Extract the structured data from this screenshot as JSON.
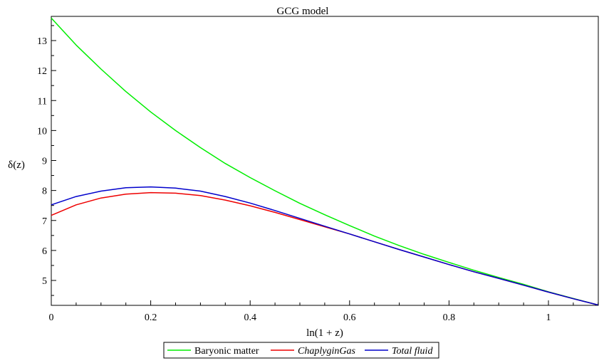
{
  "chart_data": {
    "type": "line",
    "title": "GCG model",
    "xlabel": "ln(1 + z)",
    "ylabel": "δ(z)",
    "xlim": [
      0,
      1.1
    ],
    "ylim": [
      4.1,
      13.8
    ],
    "xticks": [
      0,
      0.2,
      0.4,
      0.6,
      0.8,
      1
    ],
    "xtick_labels": [
      "0",
      "0.2",
      "0.4",
      "0.6",
      "0.8",
      "1"
    ],
    "yticks": [
      5,
      6,
      7,
      8,
      9,
      10,
      11,
      12,
      13
    ],
    "ytick_labels": [
      "5",
      "6",
      "7",
      "8",
      "9",
      "10",
      "11",
      "12",
      "13"
    ],
    "grid": false,
    "legend_position": "bottom",
    "series": [
      {
        "name": "Baryonic matter",
        "color": "#00ee00",
        "italic": false,
        "x": [
          0,
          0.05,
          0.1,
          0.15,
          0.2,
          0.25,
          0.3,
          0.35,
          0.4,
          0.45,
          0.5,
          0.55,
          0.6,
          0.65,
          0.7,
          0.75,
          0.8,
          0.85,
          0.9,
          0.95,
          1.0,
          1.05,
          1.1
        ],
        "y": [
          13.75,
          12.85,
          12.05,
          11.3,
          10.62,
          10.0,
          9.43,
          8.9,
          8.43,
          7.99,
          7.57,
          7.19,
          6.83,
          6.48,
          6.16,
          5.87,
          5.6,
          5.34,
          5.1,
          4.87,
          4.62,
          4.4,
          4.18
        ]
      },
      {
        "name": "ChaplyginGas",
        "color": "#ee0000",
        "italic": true,
        "x": [
          0,
          0.05,
          0.1,
          0.15,
          0.2,
          0.25,
          0.3,
          0.35,
          0.4,
          0.45,
          0.5,
          0.55,
          0.6,
          0.65,
          0.7,
          0.75,
          0.8,
          0.85,
          0.9,
          0.95,
          1.0,
          1.05,
          1.1
        ],
        "y": [
          7.17,
          7.52,
          7.75,
          7.88,
          7.93,
          7.91,
          7.83,
          7.68,
          7.49,
          7.27,
          7.03,
          6.79,
          6.55,
          6.29,
          6.03,
          5.78,
          5.53,
          5.29,
          5.07,
          4.84,
          4.61,
          4.39,
          4.18
        ]
      },
      {
        "name": "Total fluid",
        "color": "#0000cc",
        "italic": true,
        "x": [
          0,
          0.05,
          0.1,
          0.15,
          0.2,
          0.25,
          0.3,
          0.35,
          0.4,
          0.45,
          0.5,
          0.55,
          0.6,
          0.65,
          0.7,
          0.75,
          0.8,
          0.85,
          0.9,
          0.95,
          1.0,
          1.05,
          1.1
        ],
        "y": [
          7.52,
          7.8,
          7.98,
          8.09,
          8.12,
          8.08,
          7.98,
          7.8,
          7.58,
          7.33,
          7.07,
          6.81,
          6.55,
          6.29,
          6.03,
          5.78,
          5.53,
          5.29,
          5.07,
          4.84,
          4.61,
          4.39,
          4.18
        ]
      }
    ]
  }
}
